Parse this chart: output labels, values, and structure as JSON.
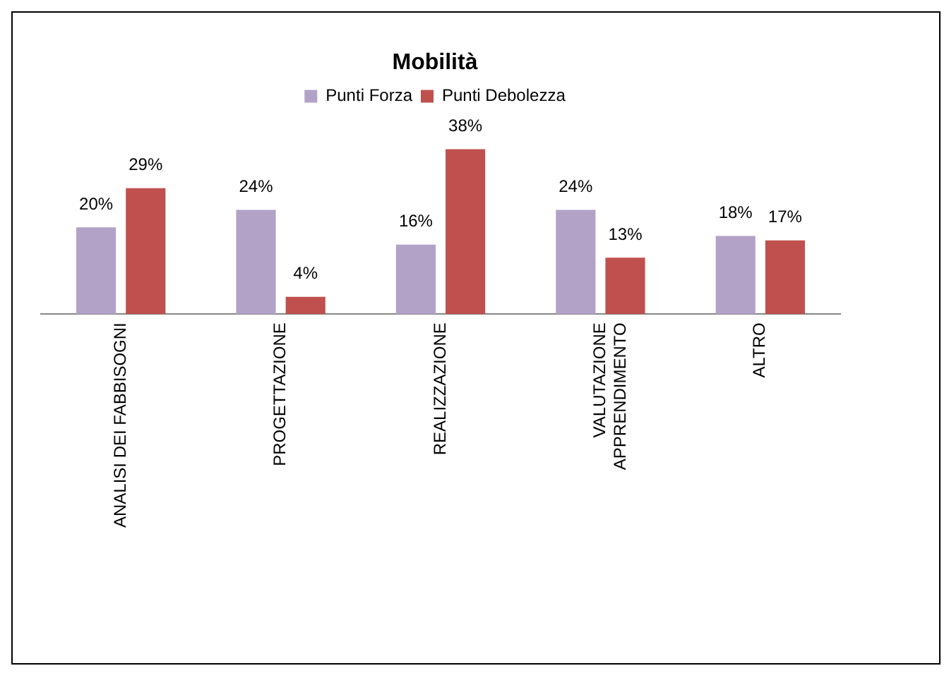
{
  "chart_data": {
    "type": "bar",
    "title": "Mobilità",
    "categories": [
      "ANALISI DEI FABBISOGNI",
      "PROGETTAZIONE",
      "REALIZZAZIONE",
      "VALUTAZIONE\nAPPRENDIMENTO",
      "ALTRO"
    ],
    "series": [
      {
        "name": "Punti Forza",
        "color": "#b3a2c7",
        "values": [
          20,
          24,
          16,
          24,
          18
        ],
        "value_labels": [
          "20%",
          "24%",
          "16%",
          "24%",
          "18%"
        ]
      },
      {
        "name": "Punti Debolezza",
        "color": "#c0504d",
        "values": [
          29,
          4,
          38,
          13,
          17
        ],
        "value_labels": [
          "29%",
          "4%",
          "38%",
          "13%",
          "17%"
        ]
      }
    ],
    "relative": false,
    "legend": "top",
    "grid": false
  }
}
